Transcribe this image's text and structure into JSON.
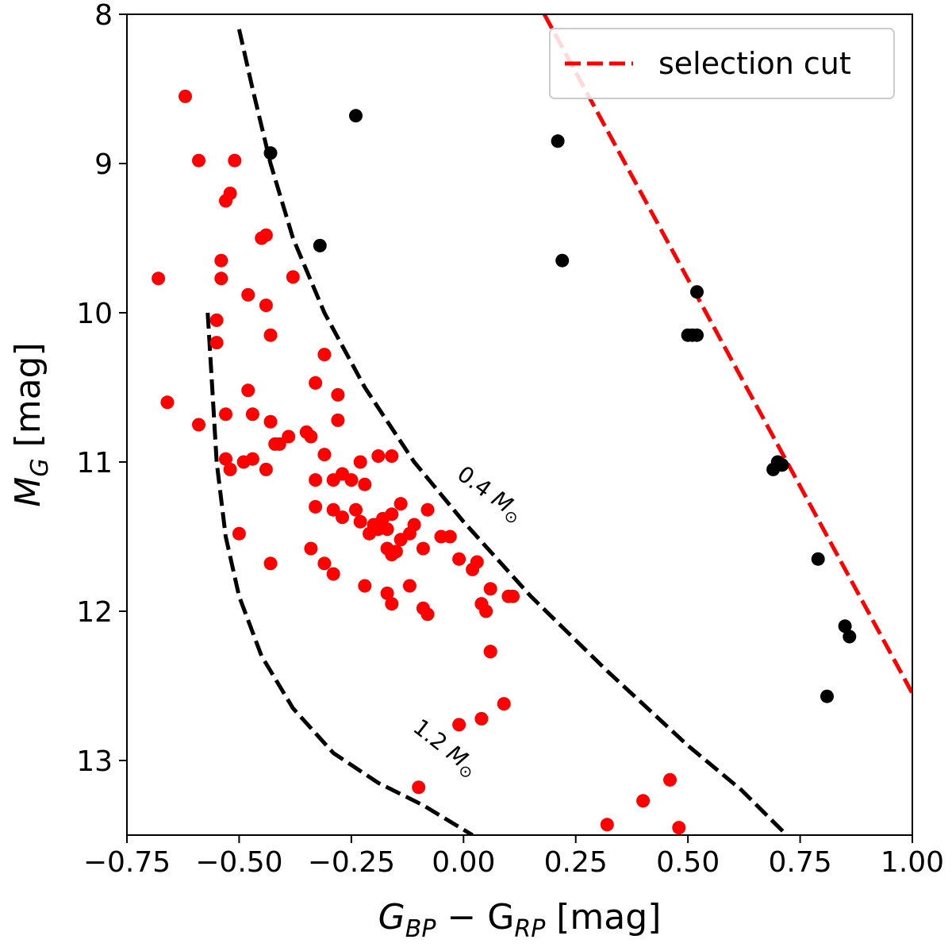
{
  "chart_data": {
    "type": "scatter",
    "xlabel": {
      "main": "G",
      "sub1": "BP",
      "mid": " − G",
      "sub2": "RP",
      "unit": " [mag]"
    },
    "ylabel": {
      "main": "M",
      "sub": "G",
      "unit": " [mag]"
    },
    "xlim": [
      -0.75,
      1.0
    ],
    "ylim": [
      13.5,
      8.0
    ],
    "y_inverted": true,
    "grid": false,
    "x_ticks": [
      "−0.75",
      "−0.50",
      "−0.25",
      "0.00",
      "0.25",
      "0.50",
      "0.75",
      "1.00"
    ],
    "x_tick_values": [
      -0.75,
      -0.5,
      -0.25,
      0.0,
      0.25,
      0.5,
      0.75,
      1.0
    ],
    "y_ticks": [
      "8",
      "9",
      "10",
      "11",
      "12",
      "13"
    ],
    "y_tick_values": [
      8,
      9,
      10,
      11,
      12,
      13
    ],
    "legend": {
      "placement": "top-right",
      "entries": [
        {
          "label": "selection cut",
          "color": "#ff0000",
          "style": "dashed"
        }
      ]
    },
    "colors": {
      "selected": "#ff0000",
      "rejected": "#000000",
      "cut": "#ff0000",
      "track": "#000000"
    },
    "series": [
      {
        "color": "#ff0000",
        "x": [
          -0.62,
          -0.59,
          -0.51,
          -0.52,
          -0.53,
          -0.44,
          -0.45,
          -0.54,
          -0.54,
          -0.68,
          -0.38,
          -0.48,
          -0.44,
          -0.55,
          -0.43,
          -0.66,
          -0.59,
          -0.53,
          -0.55,
          -0.48,
          -0.47,
          -0.43,
          -0.53,
          -0.31,
          -0.33,
          -0.28,
          -0.41,
          -0.39,
          -0.34,
          -0.35,
          -0.42,
          -0.28,
          -0.31,
          -0.52,
          -0.47,
          -0.49,
          -0.44,
          -0.33,
          -0.29,
          -0.27,
          -0.19,
          -0.16,
          -0.23,
          -0.25,
          -0.22,
          -0.24,
          -0.29,
          -0.33,
          -0.27,
          -0.23,
          -0.21,
          -0.18,
          -0.19,
          -0.14,
          -0.16,
          -0.17,
          -0.2,
          -0.12,
          -0.14,
          -0.17,
          -0.16,
          -0.15,
          -0.09,
          -0.08,
          -0.11,
          -0.05,
          -0.03,
          -0.34,
          -0.31,
          -0.29,
          -0.22,
          -0.43,
          -0.5,
          -0.17,
          -0.16,
          -0.12,
          -0.09,
          -0.08,
          -0.01,
          0.02,
          0.03,
          0.06,
          0.1,
          0.04,
          0.05,
          0.11,
          0.06,
          0.06,
          0.09,
          0.04,
          -0.01,
          0.48,
          0.46,
          0.4,
          0.32,
          -0.1
        ],
        "y": [
          8.55,
          8.98,
          8.98,
          9.2,
          9.25,
          9.48,
          9.5,
          9.65,
          9.77,
          9.77,
          9.76,
          9.88,
          9.95,
          10.05,
          10.15,
          10.6,
          10.75,
          10.98,
          10.2,
          10.52,
          10.68,
          10.73,
          10.68,
          10.28,
          10.47,
          10.55,
          10.88,
          10.83,
          10.83,
          10.8,
          10.88,
          10.72,
          10.95,
          11.05,
          10.98,
          11.0,
          11.05,
          11.12,
          11.12,
          11.08,
          10.96,
          10.96,
          11.0,
          11.12,
          11.15,
          11.32,
          11.32,
          11.3,
          11.37,
          11.4,
          11.48,
          11.38,
          11.45,
          11.28,
          11.35,
          11.45,
          11.42,
          11.48,
          11.52,
          11.58,
          11.62,
          11.6,
          11.58,
          11.32,
          11.42,
          11.5,
          11.5,
          11.58,
          11.68,
          11.75,
          11.83,
          11.68,
          11.48,
          11.88,
          11.95,
          11.83,
          11.98,
          12.02,
          11.65,
          11.72,
          11.67,
          11.85,
          11.9,
          11.95,
          12.0,
          11.9,
          12.27,
          12.27,
          12.62,
          12.72,
          12.76,
          13.45,
          13.13,
          13.27,
          13.43,
          13.18
        ]
      },
      {
        "color": "#000000",
        "x": [
          -0.43,
          -0.24,
          -0.32,
          0.21,
          0.22,
          0.52,
          0.51,
          0.5,
          0.52,
          0.7,
          0.71,
          0.69,
          0.79,
          0.85,
          0.86,
          0.81
        ],
        "y": [
          8.93,
          8.68,
          9.55,
          8.85,
          9.65,
          9.86,
          10.15,
          10.15,
          10.15,
          11.0,
          11.02,
          11.05,
          11.65,
          12.1,
          12.17,
          12.57
        ]
      }
    ],
    "selection_cut": {
      "x": [
        0.18,
        1.0
      ],
      "y": [
        8.0,
        12.55
      ]
    },
    "tracks": [
      {
        "label": "0.4",
        "unit": "M",
        "unit_sub": "⊙",
        "x": [
          -0.5,
          -0.47,
          -0.43,
          -0.38,
          -0.31,
          -0.22,
          -0.11,
          0.0,
          0.15,
          0.32,
          0.5,
          0.62,
          0.72
        ],
        "y": [
          8.1,
          8.5,
          9.0,
          9.5,
          10.0,
          10.5,
          11.0,
          11.4,
          11.9,
          12.4,
          12.9,
          13.2,
          13.5
        ]
      },
      {
        "label": "1.2",
        "unit": "M",
        "unit_sub": "⊙",
        "x": [
          -0.57,
          -0.56,
          -0.55,
          -0.53,
          -0.5,
          -0.45,
          -0.38,
          -0.29,
          -0.19,
          -0.09,
          0.02
        ],
        "y": [
          10.0,
          10.5,
          11.0,
          11.5,
          11.9,
          12.3,
          12.65,
          12.95,
          13.15,
          13.3,
          13.5
        ]
      }
    ]
  }
}
